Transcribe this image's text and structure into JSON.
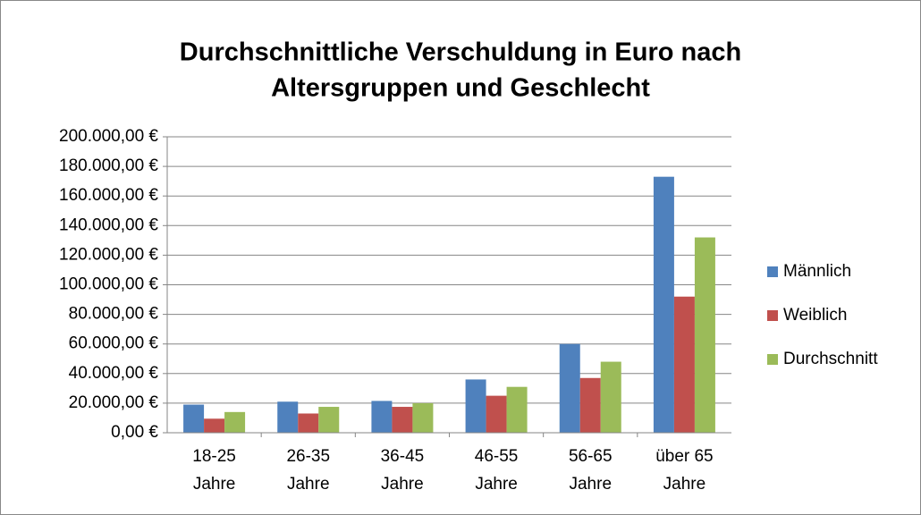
{
  "chart_data": {
    "type": "bar",
    "title": [
      "Durchschnittliche Verschuldung in Euro  nach",
      "Altersgruppen und Geschlecht"
    ],
    "categories": [
      "18-25 Jahre",
      "26-35 Jahre",
      "36-45 Jahre",
      "46-55 Jahre",
      "56-65 Jahre",
      "über 65 Jahre"
    ],
    "series": [
      {
        "name": "Männlich",
        "color": "#4f81bd",
        "values": [
          19000,
          21000,
          21500,
          36000,
          60000,
          173000
        ]
      },
      {
        "name": "Weiblich",
        "color": "#c0504d",
        "values": [
          9500,
          13000,
          17500,
          25000,
          37000,
          92000
        ]
      },
      {
        "name": "Durchschnitt",
        "color": "#9bbb59",
        "values": [
          14000,
          17500,
          20000,
          31000,
          48000,
          132000
        ]
      }
    ],
    "ylim": [
      0,
      200000
    ],
    "yticks": [
      {
        "value": 0,
        "label": "0,00 €"
      },
      {
        "value": 20000,
        "label": "20.000,00 €"
      },
      {
        "value": 40000,
        "label": "40.000,00 €"
      },
      {
        "value": 60000,
        "label": "60.000,00 €"
      },
      {
        "value": 80000,
        "label": "80.000,00 €"
      },
      {
        "value": 100000,
        "label": "100.000,00 €"
      },
      {
        "value": 120000,
        "label": "120.000,00 €"
      },
      {
        "value": 140000,
        "label": "140.000,00 €"
      },
      {
        "value": 160000,
        "label": "160.000,00 €"
      },
      {
        "value": 180000,
        "label": "180.000,00 €"
      },
      {
        "value": 200000,
        "label": "200.000,00 €"
      }
    ],
    "grid": true,
    "legend": "right"
  }
}
